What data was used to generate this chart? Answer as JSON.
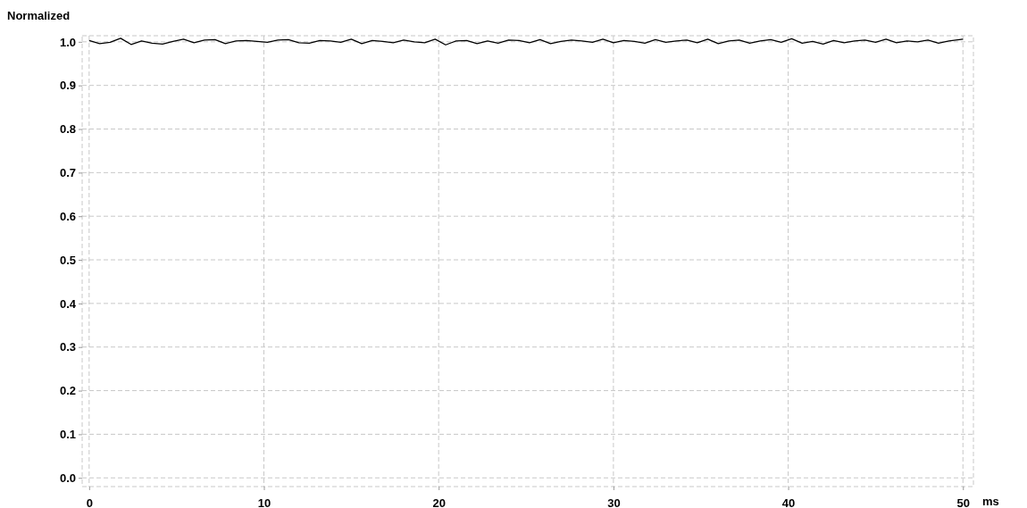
{
  "chart_data": {
    "type": "line",
    "xlabel": "ms",
    "ylabel": "Normalized",
    "x": [
      0,
      0.6,
      1.2,
      1.8,
      2.4,
      3,
      3.6,
      4.2,
      4.8,
      5.4,
      6,
      6.6,
      7.2,
      7.8,
      8.4,
      9,
      9.6,
      10.2,
      10.8,
      11.4,
      12,
      12.6,
      13.2,
      13.8,
      14.4,
      15,
      15.6,
      16.2,
      16.8,
      17.4,
      18,
      18.6,
      19.2,
      19.8,
      20.4,
      21,
      21.6,
      22.2,
      22.8,
      23.4,
      24,
      24.6,
      25.2,
      25.8,
      26.4,
      27,
      27.6,
      28.2,
      28.8,
      29.4,
      30,
      30.6,
      31.2,
      31.8,
      32.4,
      33,
      33.6,
      34.2,
      34.8,
      35.4,
      36,
      36.6,
      37.2,
      37.8,
      38.4,
      39,
      39.6,
      40.2,
      40.8,
      41.4,
      42,
      42.6,
      43.2,
      43.8,
      44.4,
      45,
      45.6,
      46.2,
      46.8,
      47.4,
      48,
      48.6,
      49.2,
      49.8,
      50
    ],
    "series": [
      {
        "color": "#000000",
        "values": [
          1.003,
          0.996,
          0.999,
          1.008,
          0.994,
          1.002,
          0.997,
          0.995,
          1.001,
          1.006,
          0.998,
          1.004,
          1.005,
          0.996,
          1.002,
          1.003,
          1.001,
          0.999,
          1.004,
          1.005,
          0.998,
          0.997,
          1.003,
          1.002,
          0.999,
          1.006,
          0.996,
          1.003,
          1.001,
          0.998,
          1.004,
          1.0,
          0.998,
          1.006,
          0.993,
          1.002,
          1.003,
          0.996,
          1.002,
          0.997,
          1.004,
          1.003,
          0.998,
          1.005,
          0.996,
          1.001,
          1.004,
          1.002,
          0.999,
          1.006,
          0.998,
          1.003,
          1.001,
          0.997,
          1.005,
          0.999,
          1.002,
          1.004,
          0.998,
          1.006,
          0.996,
          1.002,
          1.004,
          0.997,
          1.002,
          1.005,
          0.999,
          1.007,
          0.997,
          1.001,
          0.995,
          1.003,
          0.998,
          1.002,
          1.004,
          0.999,
          1.006,
          0.998,
          1.002,
          1.0,
          1.004,
          0.997,
          1.002,
          1.005,
          1.006
        ]
      }
    ],
    "xlim": [
      -0.4,
      50.6
    ],
    "ylim": [
      -0.02,
      1.014
    ],
    "xticks": [
      0,
      10,
      20,
      30,
      40,
      50
    ],
    "yticks": [
      {
        "value": 0,
        "label": "0.0"
      },
      0.1,
      0.2,
      0.3,
      0.4,
      0.5,
      0.6,
      0.7,
      0.8,
      0.9,
      {
        "value": 1,
        "label": "1.0"
      }
    ],
    "grid": true,
    "marker": "none",
    "line_style": "solid"
  }
}
